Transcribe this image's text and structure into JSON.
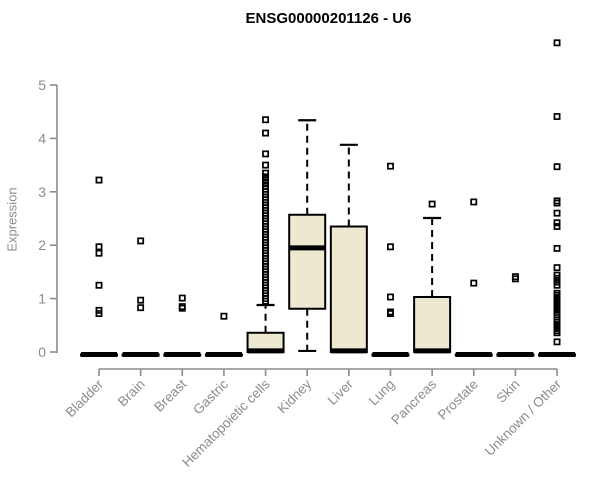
{
  "chart_data": {
    "type": "boxplot",
    "title": "ENSG00000201126 - U6",
    "xlabel": "",
    "ylabel": "Expression",
    "ylim": [
      0,
      5.9
    ],
    "yticks": [
      0,
      1,
      2,
      3,
      4,
      5
    ],
    "grid": "off",
    "legend": "none",
    "colors": {
      "box_fill": "#EDE9D0",
      "box_stroke": "#000000",
      "median": "#000000",
      "whisker": "#000000",
      "outlier": "#000000",
      "axis": "#8c8c8c",
      "tick_text": "#8c8c8c",
      "title_text": "#000000"
    },
    "categories": [
      "Bladder",
      "Brain",
      "Breast",
      "Gastric",
      "Hematopoietic cells",
      "Kidney",
      "Liver",
      "Lung",
      "Pancreas",
      "Prostate",
      "Skin",
      "Unknown / Other"
    ],
    "boxes": [
      {
        "category": "Bladder",
        "q1": 0,
        "median": 0,
        "q3": 0,
        "whisker_low": 0,
        "whisker_high": 0,
        "outliers": [
          3.22,
          1.97,
          1.85,
          1.25,
          0.78,
          0.72
        ]
      },
      {
        "category": "Brain",
        "q1": 0,
        "median": 0,
        "q3": 0,
        "whisker_low": 0,
        "whisker_high": 0,
        "outliers": [
          2.08,
          0.97,
          0.83
        ]
      },
      {
        "category": "Breast",
        "q1": 0,
        "median": 0,
        "q3": 0,
        "whisker_low": 0,
        "whisker_high": 0,
        "outliers": [
          1.01,
          0.85,
          0.82
        ]
      },
      {
        "category": "Gastric",
        "q1": 0,
        "median": 0,
        "q3": 0,
        "whisker_low": 0,
        "whisker_high": 0,
        "outliers": [
          0.67
        ]
      },
      {
        "category": "Hematopoietic cells",
        "q1": 0,
        "median": 0.02,
        "q3": 0.36,
        "whisker_low": 0,
        "whisker_high": 0.88,
        "outliers": [
          0.95,
          1.0,
          1.05,
          1.1,
          1.15,
          1.2,
          1.25,
          1.3,
          1.35,
          1.4,
          1.45,
          1.5,
          1.55,
          1.6,
          1.65,
          1.7,
          1.75,
          1.8,
          1.85,
          1.9,
          1.95,
          2.0,
          2.05,
          2.1,
          2.15,
          2.2,
          2.25,
          2.3,
          2.35,
          2.4,
          2.45,
          2.5,
          2.55,
          2.6,
          2.65,
          2.7,
          2.75,
          2.8,
          2.85,
          2.9,
          2.95,
          3.0,
          3.05,
          3.1,
          3.16,
          3.22,
          3.28,
          3.35,
          3.5,
          3.71,
          4.1,
          4.35
        ]
      },
      {
        "category": "Kidney",
        "q1": 0.81,
        "median": 1.95,
        "q3": 2.57,
        "whisker_low": 0.02,
        "whisker_high": 4.34,
        "outliers": []
      },
      {
        "category": "Liver",
        "q1": 0,
        "median": 0.02,
        "q3": 2.35,
        "whisker_low": 0,
        "whisker_high": 3.88,
        "outliers": []
      },
      {
        "category": "Lung",
        "q1": 0,
        "median": 0,
        "q3": 0,
        "whisker_low": 0,
        "whisker_high": 0,
        "outliers": [
          3.48,
          1.97,
          1.03,
          0.75,
          0.72
        ]
      },
      {
        "category": "Pancreas",
        "q1": 0,
        "median": 0.02,
        "q3": 1.03,
        "whisker_low": 0,
        "whisker_high": 2.51,
        "outliers": [
          2.77
        ]
      },
      {
        "category": "Prostate",
        "q1": 0,
        "median": 0,
        "q3": 0,
        "whisker_low": 0,
        "whisker_high": 0,
        "outliers": [
          2.81,
          1.29
        ]
      },
      {
        "category": "Skin",
        "q1": 0,
        "median": 0,
        "q3": 0,
        "whisker_low": 0,
        "whisker_high": 0,
        "outliers": [
          1.41,
          1.37
        ]
      },
      {
        "category": "Unknown / Other",
        "q1": 0,
        "median": 0,
        "q3": 0,
        "whisker_low": 0,
        "whisker_high": 0,
        "outliers": [
          5.79,
          4.41,
          3.47,
          2.83,
          2.79,
          2.6,
          2.42,
          2.35,
          1.94,
          1.58,
          1.44,
          1.38,
          1.31,
          1.25,
          1.1,
          1.06,
          1.02,
          0.98,
          0.94,
          0.9,
          0.86,
          0.82,
          0.78,
          0.74,
          0.7,
          0.6,
          0.56,
          0.52,
          0.48,
          0.44,
          0.4,
          0.36,
          0.19
        ]
      }
    ]
  }
}
